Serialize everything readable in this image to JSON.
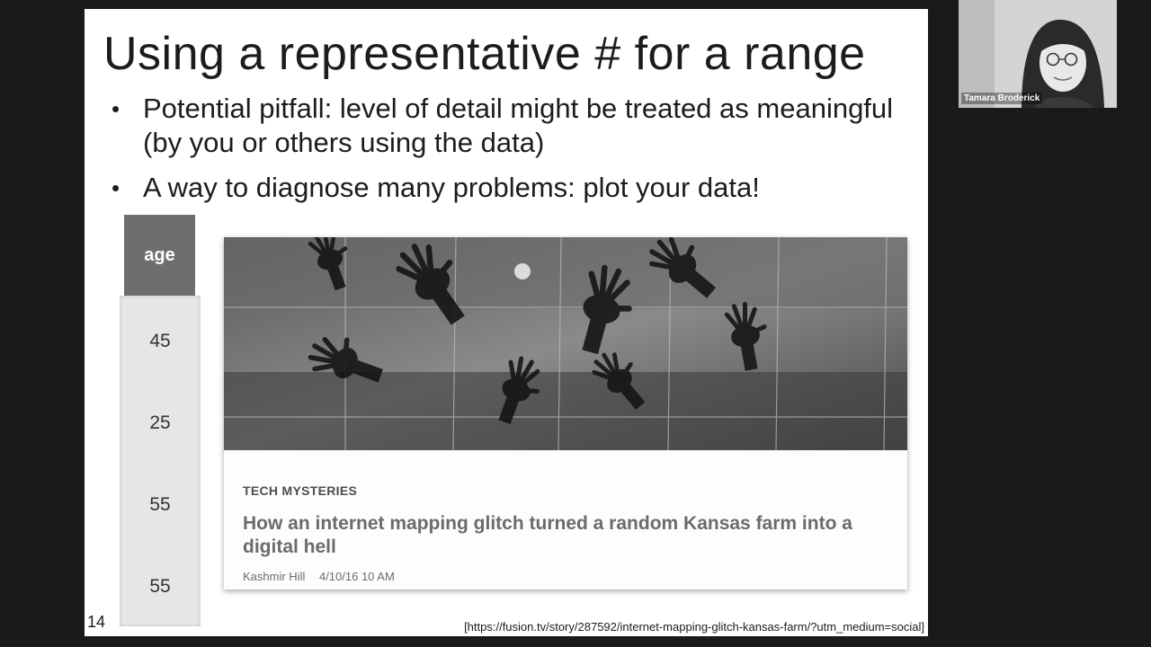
{
  "slide": {
    "title": "Using a representative # for a range",
    "bullets": [
      "Potential pitfall: level of detail might be treated as meaningful (by you or others using the data)",
      "A way to diagnose many problems: plot your data!"
    ],
    "table": {
      "header": "age",
      "values": [
        "45",
        "25",
        "55",
        "55"
      ]
    },
    "article": {
      "category": "TECH MYSTERIES",
      "headline": "How an internet mapping glitch turned a random Kansas farm into a digital hell",
      "author": "Kashmir Hill",
      "datetime": "4/10/16 10 AM",
      "image_icon": "hands-on-map-image"
    },
    "page_number": "14",
    "source_url": "[https://fusion.tv/story/287592/internet-mapping-glitch-kansas-farm/?utm_medium=social]"
  },
  "webcam": {
    "participant_name": "Tamara Broderick"
  },
  "colors": {
    "background": "#1a1a1a",
    "slide": "#ffffff",
    "table_header": "#6e6e6e",
    "table_body": "#e6e6e6"
  }
}
